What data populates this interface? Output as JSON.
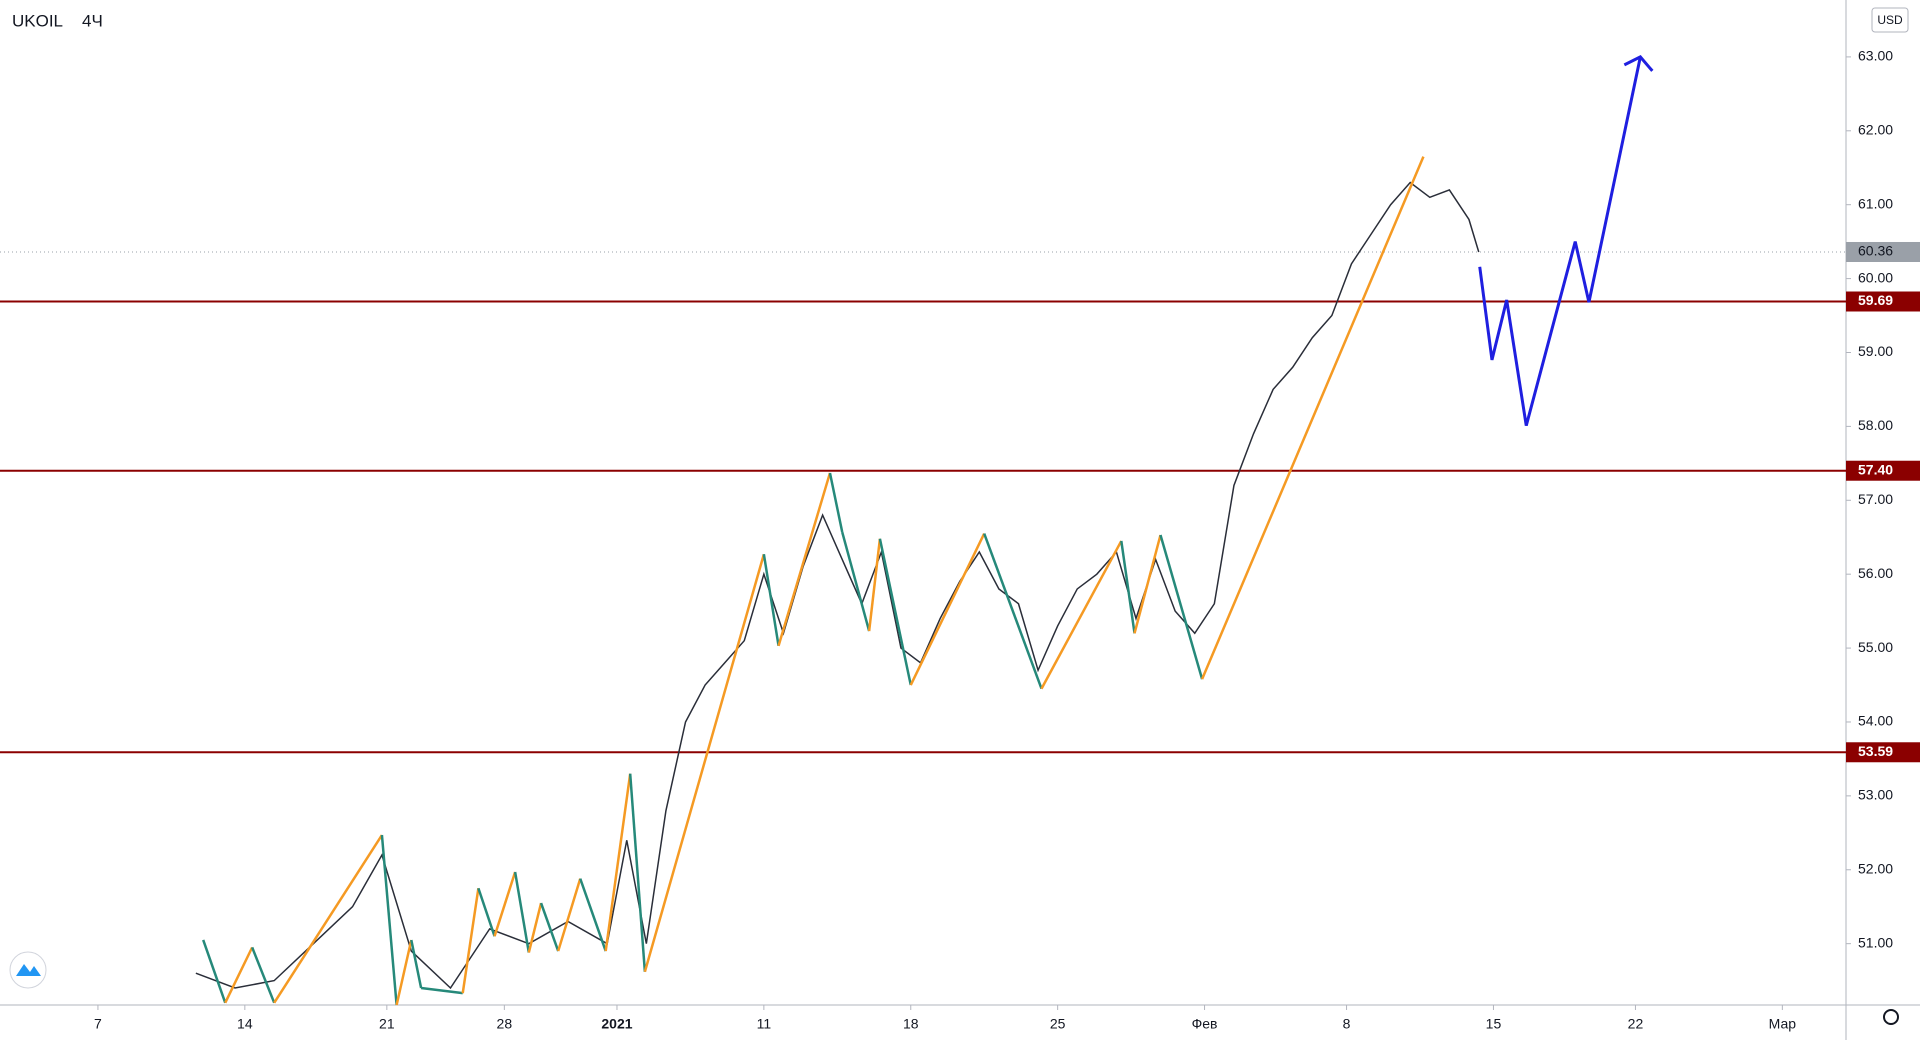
{
  "chart_data": {
    "type": "candles",
    "symbol": "UKOIL",
    "interval": "4Ч",
    "currency": "USD",
    "xlim": [
      0,
      377
    ],
    "ylim": [
      50.17,
      63.77
    ],
    "xticks": [
      {
        "value": 20,
        "label": "7"
      },
      {
        "value": 50,
        "label": "14"
      },
      {
        "value": 79,
        "label": "21"
      },
      {
        "value": 103,
        "label": "28"
      },
      {
        "value": 126,
        "label": "2021"
      },
      {
        "value": 156,
        "label": "11"
      },
      {
        "value": 186,
        "label": "18"
      },
      {
        "value": 216,
        "label": "25"
      },
      {
        "value": 246,
        "label": "Фев"
      },
      {
        "value": 275,
        "label": "8"
      },
      {
        "value": 305,
        "label": "15"
      },
      {
        "value": 334,
        "label": "22"
      },
      {
        "value": 364,
        "label": "Мар"
      }
    ],
    "yticks": [
      {
        "value": 51,
        "label": "51.00"
      },
      {
        "value": 52,
        "label": "52.00"
      },
      {
        "value": 53,
        "label": "53.00"
      },
      {
        "value": 54,
        "label": "54.00"
      },
      {
        "value": 55,
        "label": "55.00"
      },
      {
        "value": 56,
        "label": "56.00"
      },
      {
        "value": 57,
        "label": "57.00"
      },
      {
        "value": 58,
        "label": "58.00"
      },
      {
        "value": 59,
        "label": "59.00"
      },
      {
        "value": 60,
        "label": "60.00"
      },
      {
        "value": 61,
        "label": "61.00"
      },
      {
        "value": 62,
        "label": "62.00"
      },
      {
        "value": 63,
        "label": "63.00"
      }
    ],
    "levels": {
      "color": "#8b0000",
      "values": [
        {
          "value": 59.69,
          "label": "59.69"
        },
        {
          "value": 57.4,
          "label": "57.40"
        },
        {
          "value": 53.59,
          "label": "53.59"
        }
      ]
    },
    "last_price": {
      "color": "#9aa0a8",
      "value": 60.36,
      "label": "60.36"
    },
    "price": {
      "color": "#2a2e39",
      "x": [
        40,
        48,
        56,
        64,
        72,
        78,
        84,
        92,
        100,
        108,
        116,
        124,
        128,
        132,
        136,
        140,
        144,
        148,
        152,
        156,
        160,
        164,
        168,
        172,
        176,
        180,
        184,
        188,
        192,
        196,
        200,
        204,
        208,
        212,
        216,
        220,
        224,
        228,
        232,
        236,
        240,
        244,
        248,
        252,
        256,
        260,
        264,
        268,
        272,
        276,
        280,
        284,
        288,
        292,
        296,
        300,
        302
      ],
      "values": [
        50.6,
        50.4,
        50.5,
        51.0,
        51.5,
        52.2,
        50.9,
        50.4,
        51.2,
        51.0,
        51.3,
        51.0,
        52.4,
        51.0,
        52.8,
        54.0,
        54.5,
        54.8,
        55.1,
        56.0,
        55.2,
        56.1,
        56.8,
        56.2,
        55.6,
        56.3,
        55.0,
        54.8,
        55.4,
        55.9,
        56.3,
        55.8,
        55.6,
        54.7,
        55.3,
        55.8,
        56.0,
        56.3,
        55.4,
        56.2,
        55.5,
        55.2,
        55.6,
        57.2,
        57.9,
        58.5,
        58.8,
        59.2,
        59.5,
        60.2,
        60.6,
        61.0,
        61.3,
        61.1,
        61.2,
        60.8,
        60.36
      ]
    },
    "zigzag": {
      "colors": {
        "up": "#f59a23",
        "down": "#26897a"
      },
      "x": [
        41.5,
        46,
        51.5,
        56,
        78,
        81,
        84,
        86,
        94.5,
        97.7,
        101,
        105.2,
        108,
        110.5,
        114,
        118.5,
        123.7,
        128.7,
        131.7,
        156,
        159,
        169.5,
        172,
        177.5,
        179.7,
        186,
        201,
        212.7,
        229,
        231.7,
        237,
        245.5,
        290.7
      ],
      "values": [
        51.05,
        50.2,
        50.95,
        50.2,
        52.47,
        50.17,
        51.05,
        50.4,
        50.33,
        51.75,
        51.1,
        51.97,
        50.88,
        51.55,
        50.9,
        51.88,
        50.9,
        53.3,
        50.62,
        56.27,
        55.03,
        57.37,
        56.57,
        55.23,
        56.48,
        54.5,
        56.55,
        54.45,
        56.45,
        55.2,
        56.53,
        54.58,
        61.65
      ]
    },
    "forecast": {
      "color": "#1f1fe0",
      "x": [
        302.2,
        304.7,
        307.7,
        311.7,
        321.7,
        324.5,
        335
      ],
      "values": [
        60.16,
        58.9,
        59.71,
        58.01,
        60.5,
        59.68,
        63.0
      ]
    }
  }
}
